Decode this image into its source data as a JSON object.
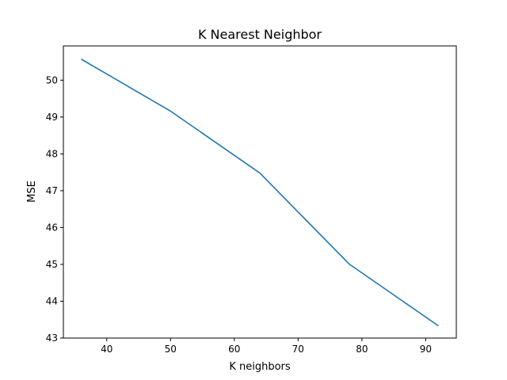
{
  "chart_data": {
    "type": "line",
    "title": "K Nearest Neighbor",
    "xlabel": "K neighbors",
    "ylabel": "MSE",
    "xlim": [
      33.2,
      94.8
    ],
    "ylim": [
      43.0,
      50.93
    ],
    "xticks": [
      40,
      50,
      60,
      70,
      80,
      90
    ],
    "yticks": [
      43,
      44,
      45,
      46,
      47,
      48,
      49,
      50
    ],
    "grid": false,
    "series": [
      {
        "color": "#1f77b4",
        "x": [
          36,
          50,
          64,
          78,
          92
        ],
        "y": [
          50.57,
          49.16,
          47.48,
          45.01,
          43.33
        ]
      }
    ]
  }
}
